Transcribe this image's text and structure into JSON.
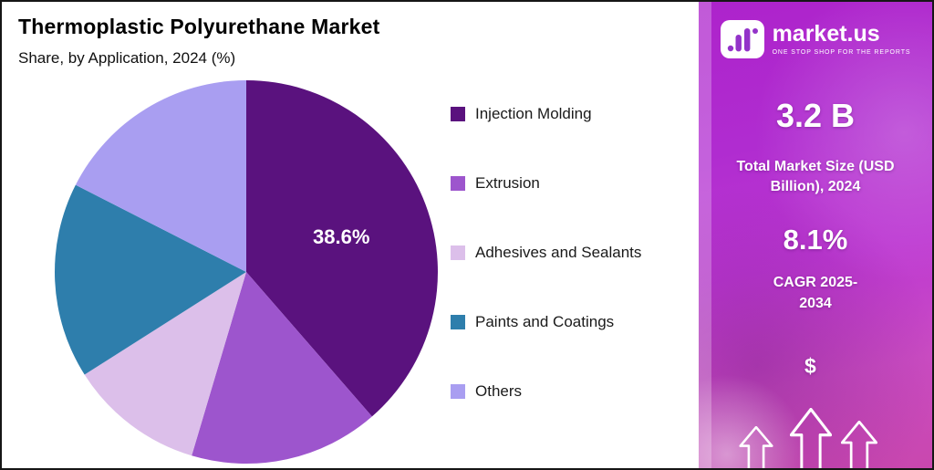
{
  "header": {
    "title": "Thermoplastic Polyurethane Market",
    "subtitle": "Share, by Application, 2024 (%)"
  },
  "chart_data": {
    "type": "pie",
    "title": "Thermoplastic Polyurethane Market",
    "subtitle": "Share, by Application, 2024 (%)",
    "categories": [
      "Injection Molding",
      "Extrusion",
      "Adhesives and Sealants",
      "Paints and Coatings",
      "Others"
    ],
    "values": [
      38.6,
      16.0,
      11.4,
      16.5,
      17.5
    ],
    "colors": [
      "#5a127e",
      "#9d55cd",
      "#dcbfea",
      "#2e7eac",
      "#a99ef1"
    ],
    "start_angle_deg": 0,
    "direction": "clockwise",
    "data_labels": [
      {
        "slice": "Injection Molding",
        "text": "38.6%"
      }
    ],
    "legend_position": "right",
    "note": "Only the Injection Molding slice is labeled in the figure; other values are estimated from slice angles."
  },
  "legend": {
    "items": [
      {
        "label": "Injection Molding",
        "color": "#5a127e"
      },
      {
        "label": "Extrusion",
        "color": "#9d55cd"
      },
      {
        "label": "Adhesives and Sealants",
        "color": "#dcbfea"
      },
      {
        "label": "Paints and Coatings",
        "color": "#2e7eac"
      },
      {
        "label": "Others",
        "color": "#a99ef1"
      }
    ]
  },
  "sidebar": {
    "brand": {
      "name": "market.us",
      "tagline": "ONE STOP SHOP FOR THE REPORTS"
    },
    "stats": [
      {
        "value": "3.2 B",
        "label": "Total Market Size (USD Billion), 2024"
      },
      {
        "value": "8.1%",
        "label": "CAGR 2025-2034"
      }
    ],
    "dollar_symbol": "$",
    "accent_color": "#b02cd0"
  }
}
